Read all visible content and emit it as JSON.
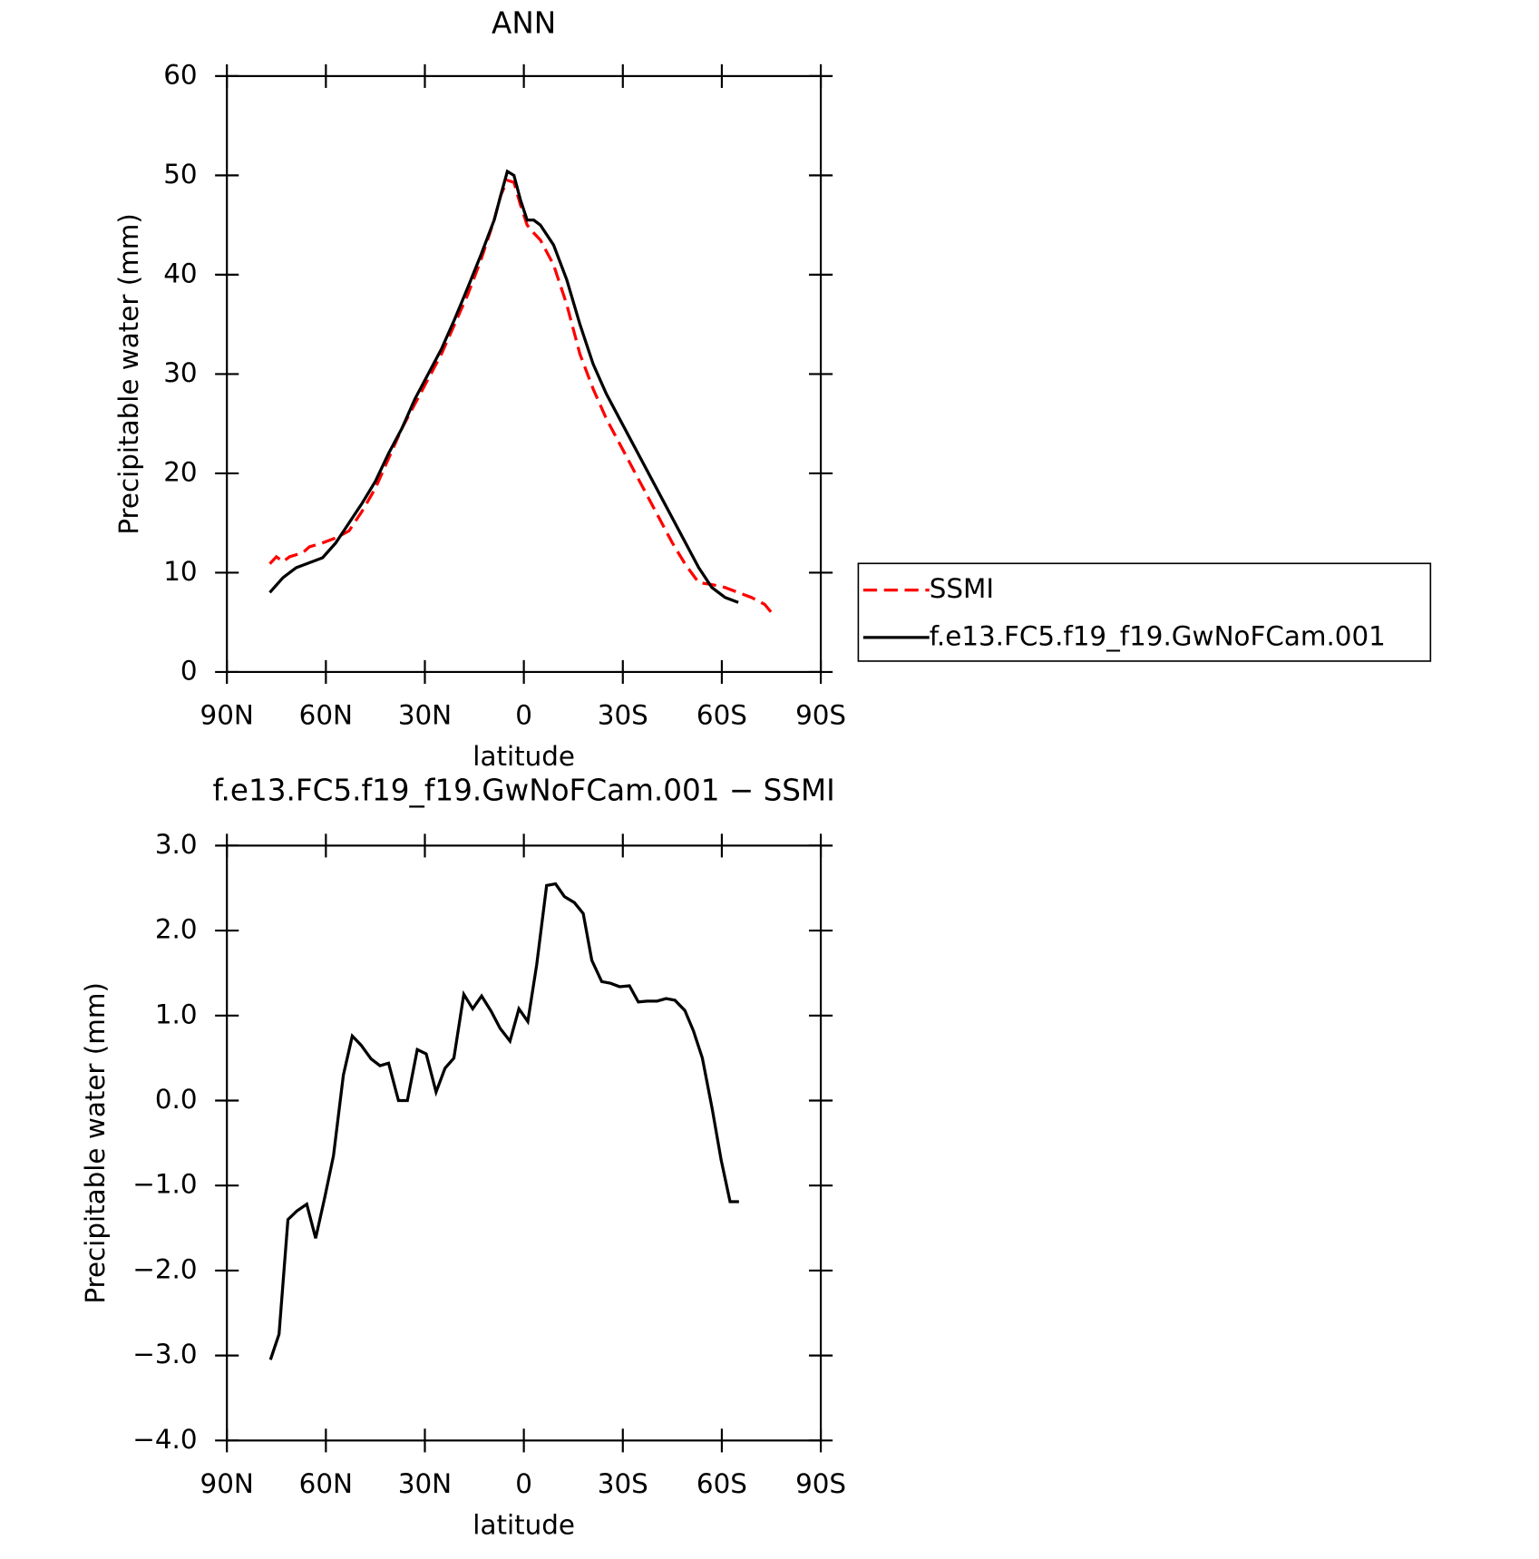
{
  "chart_data": [
    {
      "type": "line",
      "title": "ANN",
      "xlabel": "latitude",
      "ylabel": "Precipitable water (mm)",
      "xlim": [
        90,
        -90
      ],
      "ylim": [
        0,
        60
      ],
      "xticks": [
        {
          "value": 90,
          "label": "90N"
        },
        {
          "value": 60,
          "label": "60N"
        },
        {
          "value": 30,
          "label": "30N"
        },
        0,
        {
          "value": -30,
          "label": "30S"
        },
        {
          "value": -60,
          "label": "60S"
        },
        {
          "value": -90,
          "label": "90S"
        }
      ],
      "yticks": [
        0,
        10,
        20,
        30,
        40,
        50,
        60
      ],
      "series": [
        {
          "name": "SSMI",
          "color": "#ff0000",
          "dash": true,
          "x": [
            77,
            75,
            73,
            71,
            67,
            65,
            61,
            57,
            53,
            49,
            45,
            41,
            37,
            33,
            29,
            25,
            21,
            17,
            13,
            9,
            7,
            5,
            3,
            1,
            -1,
            -3,
            -5,
            -9,
            -13,
            -17,
            -21,
            -25,
            -29,
            -33,
            -37,
            -41,
            -45,
            -49,
            -53,
            -57,
            -61,
            -65,
            -69,
            -73,
            -75
          ],
          "values": [
            10.9,
            11.6,
            11.1,
            11.6,
            12.0,
            12.6,
            13.0,
            13.5,
            14.2,
            16.2,
            18.5,
            21.5,
            24.5,
            27.0,
            29.5,
            32.0,
            35.0,
            38.0,
            41.5,
            45.5,
            48.0,
            49.5,
            49.3,
            47.0,
            45.0,
            44.2,
            43.5,
            41.0,
            37.0,
            32.0,
            28.5,
            25.5,
            23.0,
            20.5,
            18.0,
            15.5,
            13.0,
            10.8,
            9.0,
            8.8,
            8.5,
            8.0,
            7.5,
            6.8,
            6.0
          ]
        },
        {
          "name": "f.e13.FC5.f19_f19.GwNoFCam.001",
          "color": "#000000",
          "dash": false,
          "x": [
            77,
            73,
            69,
            65,
            61,
            57,
            53,
            49,
            45,
            41,
            37,
            33,
            29,
            25,
            21,
            17,
            13,
            9,
            7,
            5,
            3,
            1,
            -1,
            -3,
            -5,
            -9,
            -13,
            -17,
            -21,
            -25,
            -29,
            -33,
            -37,
            -41,
            -45,
            -49,
            -53,
            -57,
            -61,
            -65
          ],
          "values": [
            8.0,
            9.5,
            10.5,
            11.0,
            11.5,
            13.0,
            15.0,
            17.0,
            19.2,
            22.0,
            24.5,
            27.5,
            30.0,
            32.5,
            35.5,
            38.7,
            42.0,
            45.5,
            48.0,
            50.4,
            50.0,
            47.5,
            45.5,
            45.5,
            45.0,
            43.0,
            39.5,
            35.0,
            31.0,
            28.0,
            25.5,
            23.0,
            20.5,
            18.0,
            15.5,
            13.0,
            10.5,
            8.5,
            7.5,
            7.0
          ]
        }
      ]
    },
    {
      "type": "line",
      "title": "f.e13.FC5.f19_f19.GwNoFCam.001 − SSMI",
      "xlabel": "latitude",
      "ylabel": "Precipitable water (mm)",
      "xlim": [
        90,
        -90
      ],
      "ylim": [
        -4,
        3
      ],
      "xticks": [
        {
          "value": 90,
          "label": "90N"
        },
        {
          "value": 60,
          "label": "60N"
        },
        {
          "value": 30,
          "label": "30N"
        },
        0,
        {
          "value": -30,
          "label": "30S"
        },
        {
          "value": -60,
          "label": "60S"
        },
        {
          "value": -90,
          "label": "90S"
        }
      ],
      "yticks": [
        {
          "value": 3,
          "label": "3.0"
        },
        {
          "value": 2,
          "label": "2.0"
        },
        {
          "value": 1,
          "label": "1.0"
        },
        {
          "value": 0,
          "label": "0.0"
        },
        {
          "value": -1,
          "label": "−1.0"
        },
        {
          "value": -2,
          "label": "−2.0"
        },
        {
          "value": -3,
          "label": "−3.0"
        },
        {
          "value": -4,
          "label": "−4.0"
        }
      ],
      "series": [
        {
          "color": "#000000",
          "dash": false,
          "x": [
            76.8,
            74.2,
            71.5,
            68.8,
            65.8,
            63.1,
            60.4,
            57.7,
            54.7,
            52,
            49.3,
            46.3,
            43.6,
            41,
            38,
            35.3,
            32.3,
            29.6,
            26.6,
            23.9,
            21.2,
            18.2,
            15.5,
            12.8,
            9.9,
            7.2,
            4.2,
            1.5,
            -1.2,
            -3.9,
            -6.9,
            -9.6,
            -12.3,
            -15.3,
            -18,
            -20.6,
            -23.6,
            -26.3,
            -29,
            -32,
            -34.7,
            -37.4,
            -40.4,
            -43.1,
            -45.8,
            -48.8,
            -51.4,
            -54.1,
            -57.1,
            -59.8,
            -62.5,
            -65.2
          ],
          "values": [
            -3.05,
            -2.75,
            -1.4,
            -1.3,
            -1.22,
            -1.62,
            -1.15,
            -0.65,
            0.3,
            0.76,
            0.65,
            0.49,
            0.41,
            0.44,
            0,
            0,
            0.6,
            0.55,
            0.1,
            0.38,
            0.5,
            1.25,
            1.08,
            1.23,
            1.05,
            0.85,
            0.7,
            1.08,
            0.93,
            1.6,
            2.53,
            2.55,
            2.4,
            2.33,
            2.2,
            1.65,
            1.4,
            1.38,
            1.34,
            1.35,
            1.16,
            1.17,
            1.17,
            1.2,
            1.18,
            1.06,
            0.82,
            0.5,
            -0.1,
            -0.7,
            -1.19,
            -1.19
          ]
        }
      ]
    }
  ]
}
